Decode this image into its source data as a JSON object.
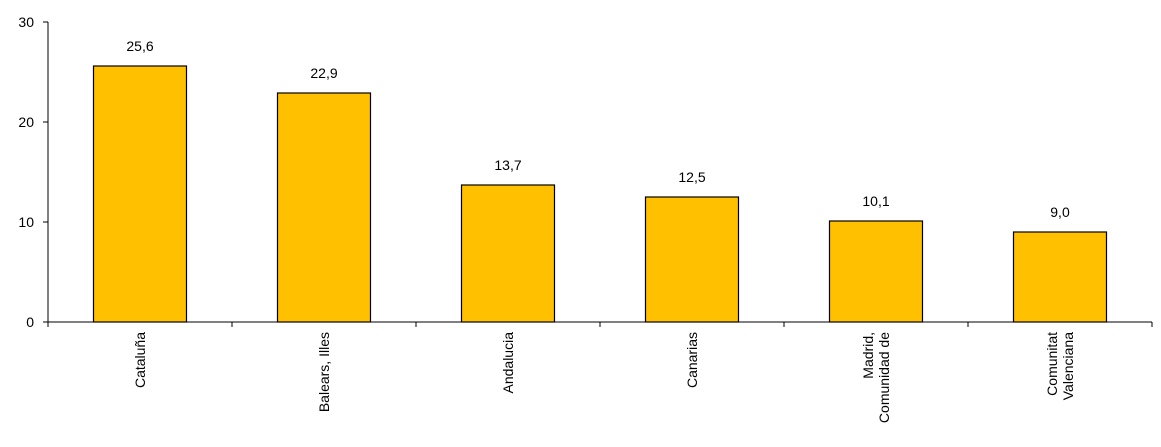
{
  "chart_data": {
    "type": "bar",
    "categories": [
      [
        "Cataluña"
      ],
      [
        "Balears, Illes"
      ],
      [
        "Andalucia"
      ],
      [
        "Canarias"
      ],
      [
        "Madrid,",
        "Comunidad de"
      ],
      [
        "Comunitat",
        "Valenciana"
      ]
    ],
    "values": [
      25.6,
      22.9,
      13.7,
      12.5,
      10.1,
      9.0
    ],
    "data_labels": [
      "25,6",
      "22,9",
      "13,7",
      "12,5",
      "10,1",
      "9,0"
    ],
    "ylim": [
      0,
      30
    ],
    "yticks": [
      0,
      10,
      20,
      30
    ],
    "ytick_labels": [
      "0",
      "10",
      "20",
      "30"
    ],
    "grid": false,
    "colors": {
      "bar_fill": "#FFC000",
      "bar_stroke": "#000000"
    }
  }
}
